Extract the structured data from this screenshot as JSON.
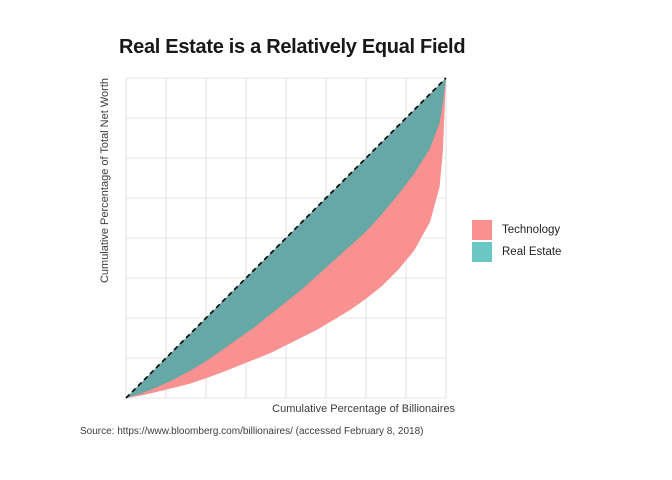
{
  "title": "Real Estate is a Relatively Equal Field",
  "axes": {
    "x_label": "Cumulative Percentage of Billionaires",
    "y_label": "Cumulative Percentage of Total Net Worth"
  },
  "legend": {
    "items": [
      {
        "label": "Technology",
        "color": "#F8918F"
      },
      {
        "label": "Real Estate",
        "color": "#69C8C3"
      }
    ]
  },
  "source_note": "Source: https://www.bloomberg.com/billionaires/ (accessed February 8, 2018)",
  "colors": {
    "technology_fill": "#F8918F",
    "real_estate_fill": "#65A8A5",
    "real_estate_legend": "#69C8C3",
    "equality_line": "#0b0b0b",
    "gridline": "#e4e4e4",
    "background": "#ffffff",
    "title_text": "#181818",
    "axis_text": "#3c3c3c"
  },
  "chart_data": {
    "type": "area",
    "subtype": "lorenz-curves",
    "title": "Real Estate is a Relatively Equal Field",
    "xlabel": "Cumulative Percentage of Billionaires",
    "ylabel": "Cumulative Percentage of Total Net Worth",
    "xlim": [
      0,
      1
    ],
    "ylim": [
      0,
      1
    ],
    "grid": true,
    "grid_interval": 0.125,
    "tick_labels_shown": false,
    "legend_position": "right",
    "equality_line": {
      "style": "dashed",
      "color": "#0b0b0b",
      "from": [
        0,
        0
      ],
      "to": [
        1,
        1
      ]
    },
    "x": [
      0,
      0.05,
      0.1,
      0.15,
      0.2,
      0.25,
      0.3,
      0.35,
      0.4,
      0.45,
      0.5,
      0.55,
      0.6,
      0.65,
      0.7,
      0.75,
      0.8,
      0.85,
      0.9,
      0.95,
      0.98,
      0.99,
      1
    ],
    "series": [
      {
        "name": "Technology",
        "fill": "#F8918F",
        "area_between": "curve-and-equality-line",
        "values": [
          0,
          0.008,
          0.02,
          0.032,
          0.045,
          0.062,
          0.08,
          0.1,
          0.12,
          0.14,
          0.165,
          0.19,
          0.215,
          0.245,
          0.275,
          0.31,
          0.35,
          0.4,
          0.46,
          0.55,
          0.66,
          0.77,
          1
        ]
      },
      {
        "name": "Real Estate",
        "fill": "#65A8A5",
        "area_between": "curve-and-equality-line",
        "values": [
          0,
          0.015,
          0.035,
          0.058,
          0.085,
          0.115,
          0.15,
          0.185,
          0.22,
          0.26,
          0.3,
          0.34,
          0.385,
          0.43,
          0.475,
          0.52,
          0.575,
          0.635,
          0.7,
          0.78,
          0.86,
          0.92,
          1
        ]
      }
    ]
  }
}
